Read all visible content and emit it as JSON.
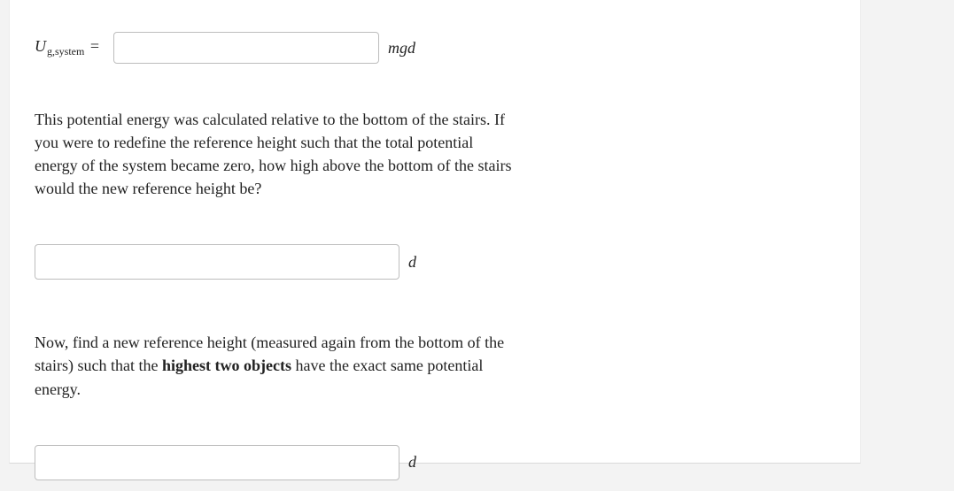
{
  "eq1": {
    "lhs_main": "U",
    "lhs_sub": "g,system",
    "equals": "=",
    "unit": "mgd",
    "value": ""
  },
  "para1": "This potential energy was calculated relative to the bottom of the stairs. If you were to redefine the reference height such that the total potential energy of the system became zero, how high above the bottom of the stairs would the new reference height be?",
  "input2": {
    "unit": "d",
    "value": ""
  },
  "para2_pre": "Now, find a new reference height (measured again from the bottom of the stairs) such that the ",
  "para2_bold": "highest two objects",
  "para2_post": " have the exact same potential energy.",
  "input3": {
    "unit": "d",
    "value": ""
  }
}
